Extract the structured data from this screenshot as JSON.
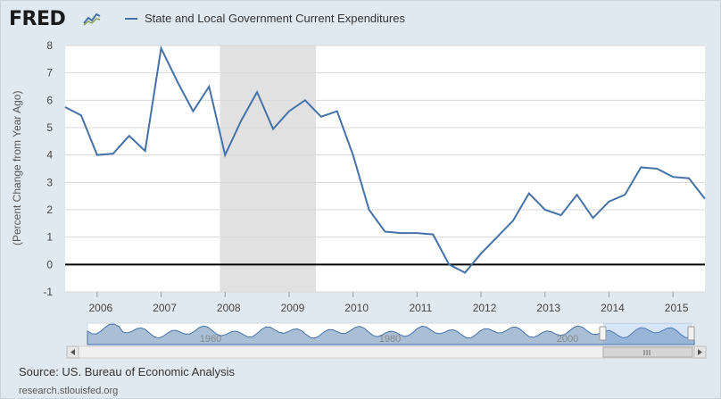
{
  "header": {
    "logo_text": "FRED",
    "legend_label": "State and Local Government Current Expenditures",
    "series_color": "#4572a7"
  },
  "chart_data": {
    "type": "line",
    "ylabel": "(Percent Change from Year Ago)",
    "ylim": [
      -1,
      8
    ],
    "yticks": [
      -1,
      0,
      1,
      2,
      3,
      4,
      5,
      6,
      7,
      8
    ],
    "xlim": [
      2005.5,
      2015.5
    ],
    "xticks": [
      2006,
      2007,
      2008,
      2009,
      2010,
      2011,
      2012,
      2013,
      2014,
      2015
    ],
    "grid": true,
    "recession_band": [
      2007.92,
      2009.42
    ],
    "series": [
      {
        "name": "State and Local Government Current Expenditures",
        "x": [
          2005.5,
          2005.75,
          2006.0,
          2006.25,
          2006.5,
          2006.75,
          2007.0,
          2007.25,
          2007.5,
          2007.75,
          2008.0,
          2008.25,
          2008.5,
          2008.75,
          2009.0,
          2009.25,
          2009.5,
          2009.75,
          2010.0,
          2010.25,
          2010.5,
          2010.75,
          2011.0,
          2011.25,
          2011.5,
          2011.75,
          2012.0,
          2012.25,
          2012.5,
          2012.75,
          2013.0,
          2013.25,
          2013.5,
          2013.75,
          2014.0,
          2014.25,
          2014.5,
          2014.75,
          2015.0,
          2015.25,
          2015.5
        ],
        "values": [
          5.75,
          5.45,
          4.0,
          4.05,
          4.7,
          4.15,
          7.9,
          6.7,
          5.6,
          6.5,
          4.0,
          5.25,
          6.3,
          4.95,
          5.6,
          6.0,
          5.4,
          5.6,
          4.0,
          2.0,
          1.2,
          1.15,
          1.15,
          1.1,
          0.0,
          -0.3,
          0.4,
          1.0,
          1.6,
          2.6,
          2.0,
          1.8,
          2.55,
          1.7,
          2.3,
          2.55,
          3.55,
          3.5,
          3.2,
          3.15,
          2.4
        ]
      }
    ]
  },
  "navigator": {
    "tick_labels": [
      "1960",
      "1980",
      "2000"
    ]
  },
  "footer": {
    "source": "Source: US. Bureau of Economic Analysis",
    "site": "research.stlouisfed.org"
  }
}
